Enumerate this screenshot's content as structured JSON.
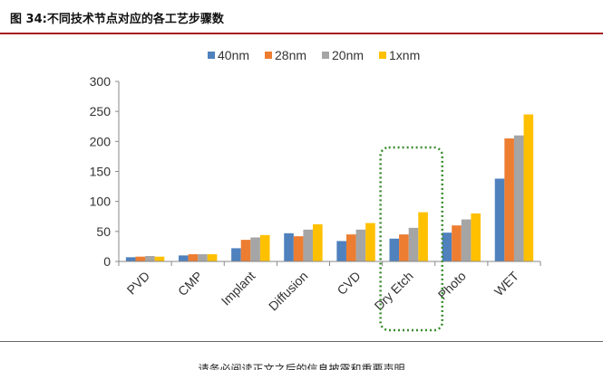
{
  "caption": "图 34:不同技术节点对应的各工艺步骤数",
  "footer": "请务必阅读正文之后的信息披露和重要声明",
  "colors": {
    "accent_rule": "#a51e22",
    "highlight_box": "#3a8a2e"
  },
  "chart_data": {
    "type": "bar",
    "title": "",
    "xlabel": "",
    "ylabel": "",
    "ylim": [
      0,
      300
    ],
    "yticks": [
      0,
      50,
      100,
      150,
      200,
      250,
      300
    ],
    "grid": false,
    "legend_position": "top",
    "categories": [
      "PVD",
      "CMP",
      "Implant",
      "Diffusion",
      "CVD",
      "Dry Etch",
      "Photo",
      "WET"
    ],
    "highlighted_category": "Dry Etch",
    "series": [
      {
        "name": "40nm",
        "color": "#4f81bd",
        "values": [
          7,
          10,
          22,
          47,
          34,
          38,
          48,
          138
        ]
      },
      {
        "name": "28nm",
        "color": "#ed7d31",
        "values": [
          8,
          12,
          36,
          42,
          45,
          45,
          60,
          205
        ]
      },
      {
        "name": "20nm",
        "color": "#a5a5a5",
        "values": [
          9,
          12,
          40,
          53,
          53,
          56,
          70,
          210
        ]
      },
      {
        "name": "1xnm",
        "color": "#ffc000",
        "values": [
          8,
          12,
          44,
          62,
          64,
          82,
          80,
          245
        ]
      }
    ]
  }
}
